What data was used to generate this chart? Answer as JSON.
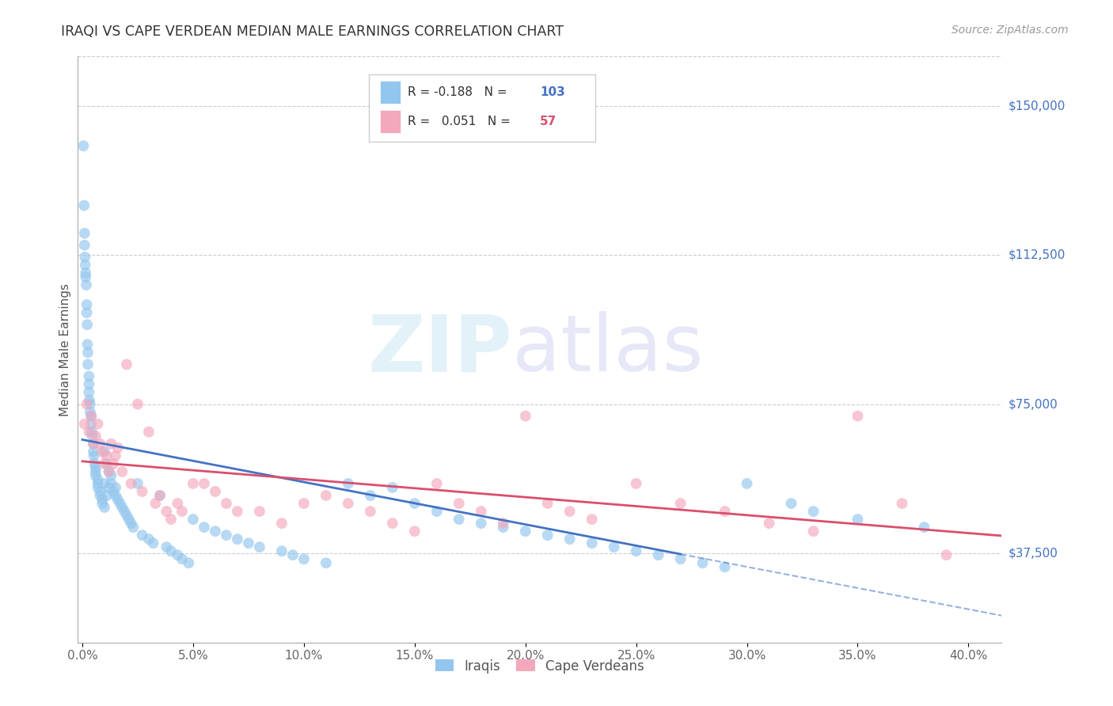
{
  "title": "IRAQI VS CAPE VERDEAN MEDIAN MALE EARNINGS CORRELATION CHART",
  "source": "Source: ZipAtlas.com",
  "ylabel": "Median Male Earnings",
  "ytick_labels": [
    "$37,500",
    "$75,000",
    "$112,500",
    "$150,000"
  ],
  "ytick_vals": [
    37500,
    75000,
    112500,
    150000
  ],
  "ymin": 15000,
  "ymax": 162500,
  "xmin": -0.002,
  "xmax": 0.415,
  "xtick_vals": [
    0.0,
    0.05,
    0.1,
    0.15,
    0.2,
    0.25,
    0.3,
    0.35,
    0.4
  ],
  "xtick_labels": [
    "0.0%",
    "5.0%",
    "10.0%",
    "15.0%",
    "20.0%",
    "25.0%",
    "30.0%",
    "35.0%",
    "40.0%"
  ],
  "R_iraqi": -0.188,
  "N_iraqi": 103,
  "R_cape_verdean": 0.051,
  "N_cape_verdean": 57,
  "iraqi_color": "#93C6EE",
  "cape_verdean_color": "#F4A8BB",
  "iraqi_line_color": "#4472C4",
  "cape_verdean_line_color": "#D94F6E",
  "legend_iraqi_label": "Iraqis",
  "legend_cape_verdean_label": "Cape Verdeans",
  "iraqi_x": [
    0.0005,
    0.0008,
    0.001,
    0.001,
    0.0012,
    0.0013,
    0.0015,
    0.0015,
    0.0018,
    0.002,
    0.002,
    0.0022,
    0.0023,
    0.0025,
    0.0025,
    0.003,
    0.003,
    0.003,
    0.0032,
    0.0035,
    0.0035,
    0.004,
    0.004,
    0.0042,
    0.0045,
    0.005,
    0.005,
    0.0052,
    0.0055,
    0.006,
    0.006,
    0.006,
    0.007,
    0.007,
    0.007,
    0.008,
    0.008,
    0.009,
    0.009,
    0.01,
    0.01,
    0.01,
    0.011,
    0.011,
    0.012,
    0.012,
    0.013,
    0.013,
    0.014,
    0.015,
    0.015,
    0.016,
    0.017,
    0.018,
    0.019,
    0.02,
    0.021,
    0.022,
    0.023,
    0.025,
    0.027,
    0.03,
    0.032,
    0.035,
    0.038,
    0.04,
    0.043,
    0.045,
    0.048,
    0.05,
    0.055,
    0.06,
    0.065,
    0.07,
    0.075,
    0.08,
    0.09,
    0.095,
    0.1,
    0.11,
    0.12,
    0.13,
    0.14,
    0.15,
    0.16,
    0.17,
    0.18,
    0.19,
    0.2,
    0.21,
    0.22,
    0.23,
    0.24,
    0.25,
    0.26,
    0.27,
    0.28,
    0.29,
    0.3,
    0.32,
    0.33,
    0.35,
    0.38
  ],
  "iraqi_y": [
    140000,
    125000,
    118000,
    115000,
    112000,
    110000,
    108000,
    107000,
    105000,
    100000,
    98000,
    95000,
    90000,
    88000,
    85000,
    82000,
    80000,
    78000,
    76000,
    75000,
    73000,
    72000,
    70000,
    68000,
    67000,
    65000,
    63000,
    62000,
    60000,
    59000,
    58000,
    57000,
    56000,
    55000,
    54000,
    53000,
    52000,
    51000,
    50000,
    49000,
    63000,
    55000,
    52000,
    60000,
    54000,
    58000,
    57000,
    55000,
    53000,
    52000,
    54000,
    51000,
    50000,
    49000,
    48000,
    47000,
    46000,
    45000,
    44000,
    55000,
    42000,
    41000,
    40000,
    52000,
    39000,
    38000,
    37000,
    36000,
    35000,
    46000,
    44000,
    43000,
    42000,
    41000,
    40000,
    39000,
    38000,
    37000,
    36000,
    35000,
    55000,
    52000,
    54000,
    50000,
    48000,
    46000,
    45000,
    44000,
    43000,
    42000,
    41000,
    40000,
    39000,
    38000,
    37000,
    36000,
    35000,
    34000,
    55000,
    50000,
    48000,
    46000,
    44000
  ],
  "cape_x": [
    0.001,
    0.002,
    0.003,
    0.004,
    0.005,
    0.006,
    0.007,
    0.008,
    0.009,
    0.01,
    0.011,
    0.012,
    0.013,
    0.014,
    0.015,
    0.016,
    0.018,
    0.02,
    0.022,
    0.025,
    0.027,
    0.03,
    0.033,
    0.035,
    0.038,
    0.04,
    0.043,
    0.045,
    0.05,
    0.055,
    0.06,
    0.065,
    0.07,
    0.08,
    0.09,
    0.1,
    0.11,
    0.12,
    0.13,
    0.14,
    0.15,
    0.16,
    0.17,
    0.18,
    0.19,
    0.2,
    0.21,
    0.22,
    0.23,
    0.25,
    0.27,
    0.29,
    0.31,
    0.33,
    0.35,
    0.37,
    0.39
  ],
  "cape_y": [
    70000,
    75000,
    68000,
    72000,
    65000,
    67000,
    70000,
    65000,
    63000,
    60000,
    62000,
    58000,
    65000,
    60000,
    62000,
    64000,
    58000,
    85000,
    55000,
    75000,
    53000,
    68000,
    50000,
    52000,
    48000,
    46000,
    50000,
    48000,
    55000,
    55000,
    53000,
    50000,
    48000,
    48000,
    45000,
    50000,
    52000,
    50000,
    48000,
    45000,
    43000,
    55000,
    50000,
    48000,
    45000,
    72000,
    50000,
    48000,
    46000,
    55000,
    50000,
    48000,
    45000,
    43000,
    72000,
    50000,
    37000
  ],
  "iraqi_line_xend_solid": 0.27,
  "iraqi_line_xend_dash": 0.415,
  "cape_line_xstart": 0.0,
  "cape_line_xend": 0.415
}
